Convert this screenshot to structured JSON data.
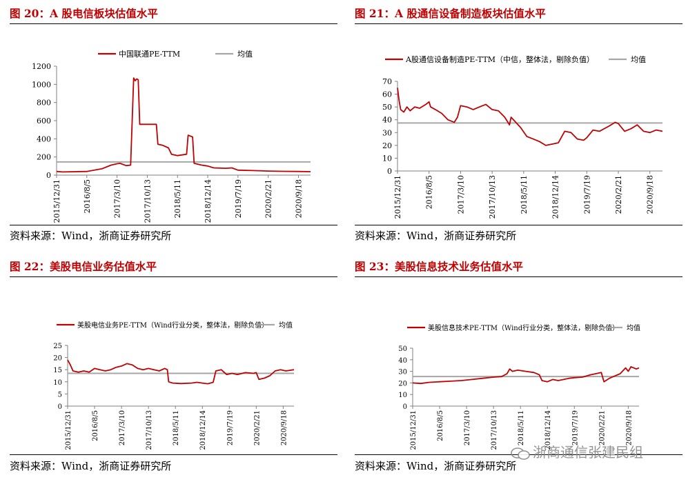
{
  "panels": [
    {
      "title": "图 20：A 股电信板块估值水平",
      "source": "资料来源：Wind，浙商证券研究所"
    },
    {
      "title": "图 21：A 股通信设备制造板块估值水平",
      "source": "资料来源：Wind，浙商证券研究所"
    },
    {
      "title": "图 22：美股电信业务估值水平",
      "source": "资料来源：Wind，浙商证券研究所"
    },
    {
      "title": "图 23：美股信息技术业务估值水平",
      "source": "资料来源：Wind，浙商证券研究所"
    }
  ],
  "watermark": "浙商通信张建民组",
  "colors": {
    "series": "#c00000",
    "mean": "#a6a6a6",
    "axis": "#7f7f7f"
  },
  "chart_data": [
    {
      "type": "line",
      "title": "图 20：A 股电信板块估值水平",
      "series_name": "中国联通PE-TTM",
      "mean_name": "均值",
      "mean_value": 145,
      "ylim": [
        0,
        1200
      ],
      "yticks": [
        0,
        200,
        400,
        600,
        800,
        1000,
        1200
      ],
      "xticks": [
        "2015/12/31",
        "2016/8/5",
        "2017/3/10",
        "2017/10/13",
        "2018/5/11",
        "2018/12/14",
        "2019/7/19",
        "2020/2/21",
        "2020/9/18"
      ],
      "points": [
        [
          0,
          40
        ],
        [
          0.2,
          35
        ],
        [
          1,
          40
        ],
        [
          1.5,
          70
        ],
        [
          1.8,
          110
        ],
        [
          2,
          125
        ],
        [
          2.1,
          130
        ],
        [
          2.3,
          105
        ],
        [
          2.45,
          110
        ],
        [
          2.55,
          1070
        ],
        [
          2.6,
          1040
        ],
        [
          2.65,
          1060
        ],
        [
          2.7,
          1050
        ],
        [
          2.75,
          560
        ],
        [
          3.3,
          560
        ],
        [
          3.35,
          340
        ],
        [
          3.5,
          330
        ],
        [
          3.7,
          300
        ],
        [
          3.8,
          230
        ],
        [
          4.0,
          215
        ],
        [
          4.3,
          230
        ],
        [
          4.35,
          440
        ],
        [
          4.5,
          420
        ],
        [
          4.55,
          130
        ],
        [
          4.8,
          110
        ],
        [
          5.0,
          100
        ],
        [
          5.2,
          80
        ],
        [
          5.6,
          75
        ],
        [
          5.8,
          80
        ],
        [
          6.0,
          55
        ],
        [
          6.5,
          50
        ],
        [
          7.0,
          45
        ],
        [
          7.5,
          42
        ],
        [
          8.0,
          40
        ],
        [
          8.4,
          38
        ]
      ]
    },
    {
      "type": "line",
      "title": "图 21：A 股通信设备制造板块估值水平",
      "series_name": "A股通信设备制造PE-TTM（中信，整体法，剔除负值）",
      "mean_name": "均值",
      "mean_value": 37.5,
      "ylim": [
        0,
        70
      ],
      "yticks": [
        0,
        10,
        20,
        30,
        40,
        50,
        60,
        70
      ],
      "xticks": [
        "2015/12/31",
        "2016/8/5",
        "2017/3/10",
        "2017/10/13",
        "2018/5/11",
        "2018/12/14",
        "2019/7/19",
        "2020/2/21",
        "2020/9/18"
      ],
      "points": [
        [
          0,
          65
        ],
        [
          0.05,
          55
        ],
        [
          0.1,
          48
        ],
        [
          0.2,
          46
        ],
        [
          0.3,
          50
        ],
        [
          0.4,
          47
        ],
        [
          0.55,
          50
        ],
        [
          0.7,
          49
        ],
        [
          0.9,
          52
        ],
        [
          1.0,
          54
        ],
        [
          1.05,
          50
        ],
        [
          1.2,
          48
        ],
        [
          1.4,
          45
        ],
        [
          1.6,
          40
        ],
        [
          1.8,
          38
        ],
        [
          1.9,
          42
        ],
        [
          2.0,
          51
        ],
        [
          2.2,
          50
        ],
        [
          2.4,
          48
        ],
        [
          2.6,
          50
        ],
        [
          2.8,
          52
        ],
        [
          3.0,
          48
        ],
        [
          3.2,
          47
        ],
        [
          3.4,
          42
        ],
        [
          3.5,
          38
        ],
        [
          3.55,
          36
        ],
        [
          3.6,
          42
        ],
        [
          3.75,
          38
        ],
        [
          3.9,
          34
        ],
        [
          4.1,
          27
        ],
        [
          4.3,
          25
        ],
        [
          4.5,
          23
        ],
        [
          4.7,
          20
        ],
        [
          4.9,
          21
        ],
        [
          5.1,
          22
        ],
        [
          5.3,
          31
        ],
        [
          5.5,
          30
        ],
        [
          5.7,
          25
        ],
        [
          5.9,
          24
        ],
        [
          6.0,
          26
        ],
        [
          6.2,
          32
        ],
        [
          6.4,
          31
        ],
        [
          6.7,
          35
        ],
        [
          6.9,
          38
        ],
        [
          7.0,
          37
        ],
        [
          7.2,
          31
        ],
        [
          7.4,
          33
        ],
        [
          7.6,
          36
        ],
        [
          7.8,
          31
        ],
        [
          8.0,
          30
        ],
        [
          8.2,
          32
        ],
        [
          8.4,
          31
        ]
      ]
    },
    {
      "type": "line",
      "title": "图 22：美股电信业务估值水平",
      "series_name": "美股电信业务PE-TTM（Wind行业分类，整体法，剔除负值）",
      "mean_name": "均值",
      "mean_value": 13.5,
      "ylim": [
        0,
        25
      ],
      "yticks": [
        0,
        5,
        10,
        15,
        20,
        25
      ],
      "xticks": [
        "2015/12/31",
        "2016/8/5",
        "2017/3/10",
        "2017/10/13",
        "2018/5/11",
        "2018/12/14",
        "2019/7/19",
        "2020/2/21",
        "2020/9/18"
      ],
      "points": [
        [
          0,
          19
        ],
        [
          0.1,
          17
        ],
        [
          0.2,
          14.5
        ],
        [
          0.4,
          14
        ],
        [
          0.6,
          14.5
        ],
        [
          0.8,
          14
        ],
        [
          1.0,
          15.5
        ],
        [
          1.2,
          15
        ],
        [
          1.4,
          14.5
        ],
        [
          1.6,
          15
        ],
        [
          1.8,
          16
        ],
        [
          2.0,
          16.5
        ],
        [
          2.2,
          17.5
        ],
        [
          2.4,
          17
        ],
        [
          2.6,
          15.5
        ],
        [
          2.8,
          15
        ],
        [
          3.0,
          15.5
        ],
        [
          3.2,
          15
        ],
        [
          3.4,
          14.5
        ],
        [
          3.6,
          15.5
        ],
        [
          3.7,
          15
        ],
        [
          3.75,
          10
        ],
        [
          3.9,
          9.5
        ],
        [
          4.2,
          9.3
        ],
        [
          4.6,
          9.5
        ],
        [
          4.8,
          9.8
        ],
        [
          5.0,
          9.5
        ],
        [
          5.2,
          9.2
        ],
        [
          5.4,
          9.8
        ],
        [
          5.5,
          14.5
        ],
        [
          5.7,
          15
        ],
        [
          5.9,
          13
        ],
        [
          6.1,
          13.5
        ],
        [
          6.3,
          13
        ],
        [
          6.6,
          13.8
        ],
        [
          6.9,
          13.5
        ],
        [
          7.0,
          13.8
        ],
        [
          7.1,
          11
        ],
        [
          7.3,
          11.5
        ],
        [
          7.5,
          12.5
        ],
        [
          7.7,
          14.5
        ],
        [
          7.9,
          15
        ],
        [
          8.1,
          14.5
        ],
        [
          8.4,
          15
        ]
      ]
    },
    {
      "type": "line",
      "title": "图 23：美股信息技术业务估值水平",
      "series_name": "美股信息技术PE-TTM（Wind行业分类，整体法，剔除负值）",
      "mean_name": "均值",
      "mean_value": 25.5,
      "ylim": [
        0,
        50
      ],
      "yticks": [
        0,
        10,
        20,
        30,
        40,
        50
      ],
      "xticks": [
        "2015/12/31",
        "2016/8/5",
        "2017/3/10",
        "2017/10/13",
        "2018/5/11",
        "2018/12/14",
        "2019/7/19",
        "2020/2/21",
        "2020/9/18"
      ],
      "points": [
        [
          0,
          20
        ],
        [
          0.3,
          19.5
        ],
        [
          0.6,
          20.5
        ],
        [
          1.0,
          21
        ],
        [
          1.4,
          21.5
        ],
        [
          1.8,
          22
        ],
        [
          2.2,
          23
        ],
        [
          2.6,
          24
        ],
        [
          3.0,
          25
        ],
        [
          3.3,
          25.5
        ],
        [
          3.5,
          28
        ],
        [
          3.6,
          32
        ],
        [
          3.7,
          30
        ],
        [
          3.9,
          31
        ],
        [
          4.2,
          30
        ],
        [
          4.5,
          29
        ],
        [
          4.7,
          27
        ],
        [
          4.8,
          22
        ],
        [
          5.0,
          21
        ],
        [
          5.2,
          23
        ],
        [
          5.4,
          22
        ],
        [
          5.6,
          23
        ],
        [
          5.8,
          24
        ],
        [
          6.0,
          24.5
        ],
        [
          6.3,
          25
        ],
        [
          6.6,
          27
        ],
        [
          6.8,
          28
        ],
        [
          7.0,
          29
        ],
        [
          7.1,
          21
        ],
        [
          7.3,
          24
        ],
        [
          7.5,
          26
        ],
        [
          7.7,
          28
        ],
        [
          7.9,
          33
        ],
        [
          8.0,
          30
        ],
        [
          8.1,
          34
        ],
        [
          8.3,
          32
        ],
        [
          8.4,
          33
        ]
      ]
    }
  ]
}
